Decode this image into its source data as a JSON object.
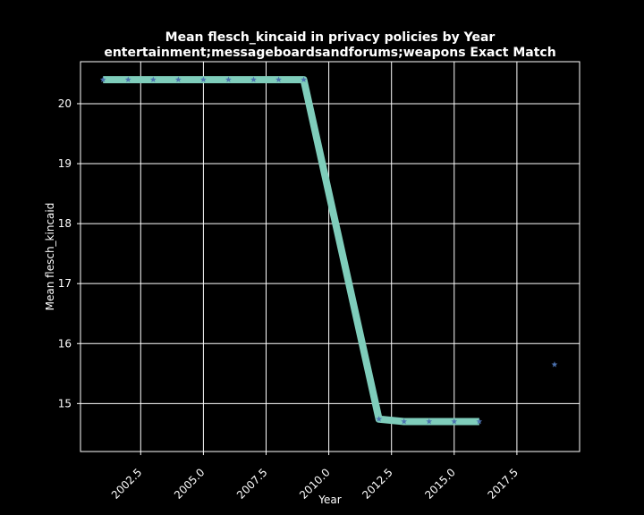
{
  "chart_data": {
    "type": "line",
    "title": "Mean flesch_kincaid in privacy policies by Year",
    "subtitle": "entertainment;messageboardsandforums;weapons Exact Match",
    "xlabel": "Year",
    "ylabel": "Mean flesch_kincaid",
    "xlim": [
      2000.1,
      2020.0
    ],
    "ylim": [
      14.2,
      20.7
    ],
    "xticks": [
      "2002.5",
      "2005.0",
      "2007.5",
      "2010.0",
      "2012.5",
      "2015.0",
      "2017.5"
    ],
    "yticks": [
      "15",
      "16",
      "17",
      "18",
      "19",
      "20"
    ],
    "grid": true,
    "background": "#000000",
    "foreground": "#ffffff",
    "line_color": "#7fcdbb",
    "marker_color": "#4c72b0",
    "marker": "star",
    "line_segment": {
      "x": [
        2001,
        2002,
        2003,
        2004,
        2005,
        2006,
        2007,
        2008,
        2009,
        2012,
        2013,
        2014,
        2015,
        2016
      ],
      "y": [
        20.4,
        20.4,
        20.4,
        20.4,
        20.4,
        20.4,
        20.4,
        20.4,
        20.4,
        14.74,
        14.7,
        14.7,
        14.7,
        14.7
      ]
    },
    "points": {
      "x": [
        2001,
        2002,
        2003,
        2004,
        2005,
        2006,
        2007,
        2008,
        2009,
        2012,
        2013,
        2014,
        2015,
        2016,
        2019
      ],
      "y": [
        20.4,
        20.4,
        20.4,
        20.4,
        20.4,
        20.4,
        20.4,
        20.4,
        20.4,
        14.74,
        14.7,
        14.7,
        14.7,
        14.7,
        15.65
      ]
    }
  }
}
